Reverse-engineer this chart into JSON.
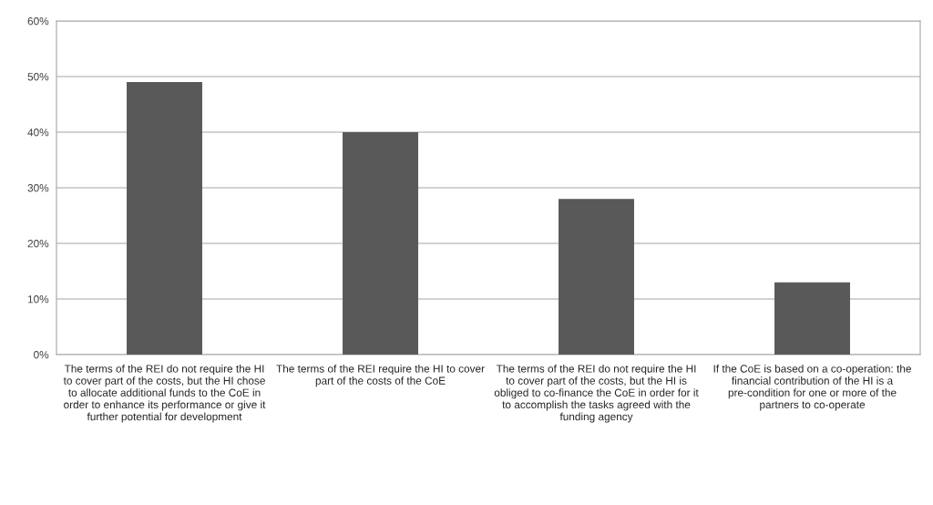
{
  "chart_data": {
    "type": "bar",
    "categories": [
      "The terms of the REI do not require the HI to cover part of the costs, but the HI chose to allocate additional funds to the CoE in order to enhance its performance or give it further potential for development",
      "The terms of the REI require the HI to cover part of the costs of the CoE",
      "The terms of the REI do not require the HI to cover part of the costs, but the HI is obliged to co-finance the CoE in order for it to accomplish the tasks agreed with the funding agency",
      "If the CoE is based on a co-operation: the financial contribution of the HI is a pre-condition for one or more of the partners to co-operate"
    ],
    "values": [
      49,
      40,
      28,
      13
    ],
    "color": "#595959",
    "ylim": [
      0,
      60
    ],
    "yticks": [
      {
        "value": 0,
        "label": "0%"
      },
      {
        "value": 10,
        "label": "10%"
      },
      {
        "value": 20,
        "label": "20%"
      },
      {
        "value": 30,
        "label": "30%"
      },
      {
        "value": 40,
        "label": "40%"
      },
      {
        "value": 50,
        "label": "50%"
      },
      {
        "value": 60,
        "label": "60%"
      }
    ],
    "grid": "y",
    "legend": false
  }
}
